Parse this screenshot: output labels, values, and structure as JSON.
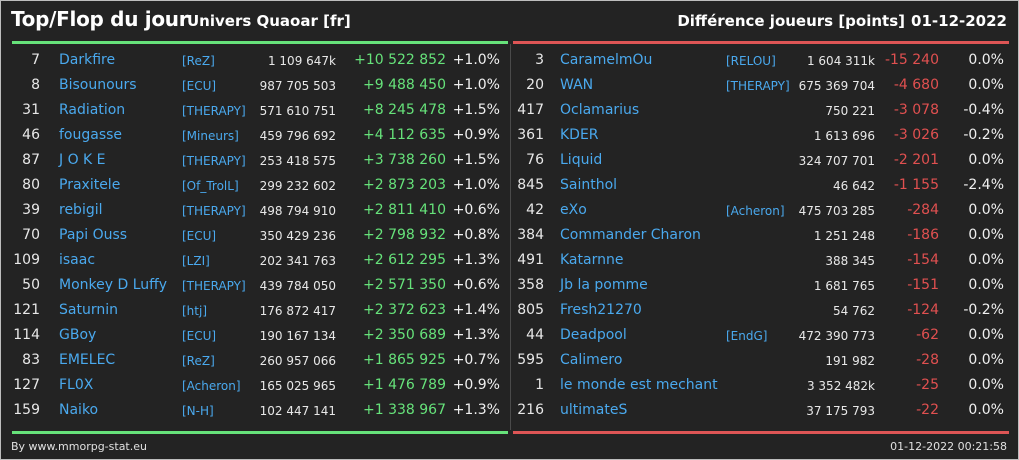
{
  "header": {
    "title": "Top/Flop du jour",
    "universe": "Univers Quaoar [fr]",
    "difference_label": "Différence joueurs [points]",
    "date": "01-12-2022"
  },
  "colors": {
    "top_bar": "#66e27a",
    "flop_bar": "#dd5555",
    "positive": "#66e27a",
    "negative": "#e05050",
    "link": "#4aa9ee"
  },
  "top": [
    {
      "rank": "7",
      "name": "Darkfire",
      "tag": "[ReZ]",
      "points": "1 109 647k",
      "diff": "+10 522 852",
      "pct": "+1.0%"
    },
    {
      "rank": "8",
      "name": "Bisounours",
      "tag": "[ECU]",
      "points": "987 705 503",
      "diff": "+9 488 450",
      "pct": "+1.0%"
    },
    {
      "rank": "31",
      "name": "Radiation",
      "tag": "[THERAPY]",
      "points": "571 610 751",
      "diff": "+8 245 478",
      "pct": "+1.5%"
    },
    {
      "rank": "46",
      "name": "fougasse",
      "tag": "[Mineurs]",
      "points": "459 796 692",
      "diff": "+4 112 635",
      "pct": "+0.9%"
    },
    {
      "rank": "87",
      "name": "J O K E",
      "tag": "[THERAPY]",
      "points": "253 418 575",
      "diff": "+3 738 260",
      "pct": "+1.5%"
    },
    {
      "rank": "80",
      "name": "Praxitele",
      "tag": "[Of_TrolL]",
      "points": "299 232 602",
      "diff": "+2 873 203",
      "pct": "+1.0%"
    },
    {
      "rank": "39",
      "name": "rebigil",
      "tag": "[THERAPY]",
      "points": "498 794 910",
      "diff": "+2 811 410",
      "pct": "+0.6%"
    },
    {
      "rank": "70",
      "name": "Papi Ouss",
      "tag": "[ECU]",
      "points": "350 429 236",
      "diff": "+2 798 932",
      "pct": "+0.8%"
    },
    {
      "rank": "109",
      "name": "isaac",
      "tag": "[LZI]",
      "points": "202 341 763",
      "diff": "+2 612 295",
      "pct": "+1.3%"
    },
    {
      "rank": "50",
      "name": "Monkey D Luffy",
      "tag": "[THERAPY]",
      "points": "439 784 050",
      "diff": "+2 571 350",
      "pct": "+0.6%"
    },
    {
      "rank": "121",
      "name": "Saturnin",
      "tag": "[htj]",
      "points": "176 872 417",
      "diff": "+2 372 623",
      "pct": "+1.4%"
    },
    {
      "rank": "114",
      "name": "GBoy",
      "tag": "[ECU]",
      "points": "190 167 134",
      "diff": "+2 350 689",
      "pct": "+1.3%"
    },
    {
      "rank": "83",
      "name": "EMELEC",
      "tag": "[ReZ]",
      "points": "260 957 066",
      "diff": "+1 865 925",
      "pct": "+0.7%"
    },
    {
      "rank": "127",
      "name": "FL0X",
      "tag": "[Acheron]",
      "points": "165 025 965",
      "diff": "+1 476 789",
      "pct": "+0.9%"
    },
    {
      "rank": "159",
      "name": "Naiko",
      "tag": "[N-H]",
      "points": "102 447 141",
      "diff": "+1 338 967",
      "pct": "+1.3%"
    }
  ],
  "flop": [
    {
      "rank": "3",
      "name": "CaramelmOu",
      "tag": "[RELOU]",
      "points": "1 604 311k",
      "diff": "-15 240",
      "pct": "0.0%"
    },
    {
      "rank": "20",
      "name": "WAN",
      "tag": "[THERAPY]",
      "points": "675 369 704",
      "diff": "-4 680",
      "pct": "0.0%"
    },
    {
      "rank": "417",
      "name": "Oclamarius",
      "tag": "",
      "points": "750 221",
      "diff": "-3 078",
      "pct": "-0.4%"
    },
    {
      "rank": "361",
      "name": "KDER",
      "tag": "",
      "points": "1 613 696",
      "diff": "-3 026",
      "pct": "-0.2%"
    },
    {
      "rank": "76",
      "name": "Liquid",
      "tag": "",
      "points": "324 707 701",
      "diff": "-2 201",
      "pct": "0.0%"
    },
    {
      "rank": "845",
      "name": "Sainthol",
      "tag": "",
      "points": "46 642",
      "diff": "-1 155",
      "pct": "-2.4%"
    },
    {
      "rank": "42",
      "name": "eXo",
      "tag": "[Acheron]",
      "points": "475 703 285",
      "diff": "-284",
      "pct": "0.0%"
    },
    {
      "rank": "384",
      "name": "Commander Charon",
      "tag": "",
      "points": "1 251 248",
      "diff": "-186",
      "pct": "0.0%"
    },
    {
      "rank": "491",
      "name": "Katarnne",
      "tag": "",
      "points": "388 345",
      "diff": "-154",
      "pct": "0.0%"
    },
    {
      "rank": "358",
      "name": "Jb la pomme",
      "tag": "",
      "points": "1 681 765",
      "diff": "-151",
      "pct": "0.0%"
    },
    {
      "rank": "805",
      "name": "Fresh21270",
      "tag": "",
      "points": "54 762",
      "diff": "-124",
      "pct": "-0.2%"
    },
    {
      "rank": "44",
      "name": "Deadpool",
      "tag": "[EndG]",
      "points": "472 390 773",
      "diff": "-62",
      "pct": "0.0%"
    },
    {
      "rank": "595",
      "name": "Calimero",
      "tag": "",
      "points": "191 982",
      "diff": "-28",
      "pct": "0.0%"
    },
    {
      "rank": "1",
      "name": "le monde est mechant",
      "tag": "",
      "points": "3 352 482k",
      "diff": "-25",
      "pct": "0.0%"
    },
    {
      "rank": "216",
      "name": "ultimateS",
      "tag": "",
      "points": "37 175 793",
      "diff": "-22",
      "pct": "0.0%"
    }
  ],
  "footer": {
    "credit": "By www.mmorpg-stat.eu",
    "timestamp": "01-12-2022 00:21:58"
  }
}
